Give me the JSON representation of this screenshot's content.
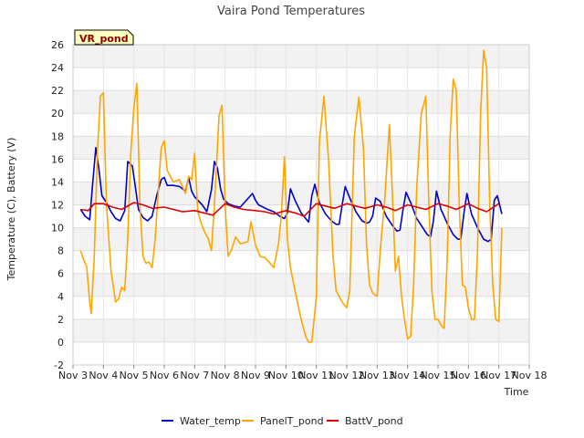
{
  "chart_data": {
    "type": "line",
    "title": "Vaira Pond Temperatures",
    "site_tag": "VR_pond",
    "xlabel": "Time",
    "ylabel": "Temperature (C), Battery (V)",
    "xlim": [
      3,
      18
    ],
    "ylim": [
      -2,
      26
    ],
    "x_ticks": [
      3,
      4,
      5,
      6,
      7,
      8,
      9,
      10,
      11,
      12,
      13,
      14,
      15,
      16,
      17,
      18
    ],
    "x_tick_labels": [
      "Nov 3",
      "Nov 4",
      "Nov 5",
      "Nov 6",
      "Nov 7",
      "Nov 8",
      "Nov 9",
      "Nov 10",
      "Nov 11",
      "Nov 12",
      "Nov 13",
      "Nov 14",
      "Nov 15",
      "Nov 16",
      "Nov 17",
      "Nov 18"
    ],
    "y_ticks": [
      -2,
      0,
      2,
      4,
      6,
      8,
      10,
      12,
      14,
      16,
      18,
      20,
      22,
      24,
      26
    ],
    "grid": true,
    "legend_position": "bottom",
    "colors": {
      "Water_temp": "#0000cc",
      "PanelT_pond": "#ffa500",
      "BattV_pond": "#dd0000"
    },
    "series": [
      {
        "name": "Water_temp",
        "x": [
          3.25,
          3.4,
          3.55,
          3.65,
          3.75,
          3.85,
          3.95,
          4.1,
          4.25,
          4.4,
          4.55,
          4.7,
          4.8,
          4.95,
          5.05,
          5.15,
          5.3,
          5.45,
          5.6,
          5.75,
          5.9,
          6.0,
          6.1,
          6.3,
          6.5,
          6.7,
          6.8,
          6.9,
          7.0,
          7.1,
          7.25,
          7.4,
          7.55,
          7.65,
          7.75,
          7.85,
          7.95,
          8.1,
          8.3,
          8.5,
          8.7,
          8.9,
          9.0,
          9.1,
          9.25,
          9.4,
          9.6,
          9.8,
          9.95,
          10.05,
          10.15,
          10.3,
          10.5,
          10.65,
          10.75,
          10.85,
          10.95,
          11.1,
          11.3,
          11.5,
          11.65,
          11.75,
          11.85,
          11.95,
          12.1,
          12.3,
          12.5,
          12.65,
          12.75,
          12.85,
          12.95,
          13.1,
          13.3,
          13.5,
          13.65,
          13.75,
          13.85,
          13.95,
          14.1,
          14.3,
          14.5,
          14.65,
          14.75,
          14.85,
          14.95,
          15.1,
          15.3,
          15.5,
          15.65,
          15.75,
          15.85,
          15.95,
          16.1,
          16.3,
          16.5,
          16.65,
          16.75,
          16.85,
          16.95,
          17.1
        ],
        "y": [
          11.6,
          11.0,
          10.7,
          14.0,
          17.0,
          15.2,
          12.8,
          12.2,
          11.4,
          10.8,
          10.6,
          11.5,
          15.8,
          15.4,
          13.6,
          11.6,
          10.9,
          10.6,
          11.0,
          12.8,
          14.2,
          14.4,
          13.7,
          13.7,
          13.6,
          13.2,
          14.4,
          13.2,
          12.7,
          12.4,
          12.0,
          11.4,
          13.3,
          15.8,
          15.2,
          13.4,
          12.5,
          12.1,
          11.9,
          11.8,
          12.4,
          13.0,
          12.4,
          12.0,
          11.8,
          11.6,
          11.4,
          11.0,
          10.8,
          11.3,
          13.4,
          12.4,
          11.3,
          10.8,
          10.5,
          12.8,
          13.8,
          12.2,
          11.2,
          10.6,
          10.3,
          10.3,
          12.0,
          13.6,
          12.6,
          11.4,
          10.6,
          10.4,
          10.5,
          11.0,
          12.6,
          12.3,
          11.0,
          10.2,
          9.7,
          9.8,
          11.6,
          13.1,
          12.2,
          10.8,
          10.0,
          9.4,
          9.2,
          10.6,
          13.2,
          11.6,
          10.4,
          9.4,
          9.0,
          9.0,
          11.2,
          13.0,
          11.2,
          10.0,
          9.0,
          8.8,
          9.0,
          12.4,
          12.8,
          11.2
        ]
      },
      {
        "name": "PanelT_pond",
        "x": [
          3.25,
          3.35,
          3.45,
          3.55,
          3.6,
          3.7,
          3.8,
          3.9,
          4.0,
          4.1,
          4.25,
          4.4,
          4.5,
          4.6,
          4.7,
          4.8,
          4.9,
          5.0,
          5.1,
          5.2,
          5.3,
          5.4,
          5.5,
          5.6,
          5.7,
          5.8,
          5.9,
          6.0,
          6.1,
          6.3,
          6.5,
          6.7,
          6.8,
          6.9,
          7.0,
          7.1,
          7.2,
          7.3,
          7.45,
          7.55,
          7.65,
          7.75,
          7.8,
          7.9,
          8.0,
          8.1,
          8.2,
          8.35,
          8.5,
          8.65,
          8.75,
          8.85,
          9.0,
          9.15,
          9.3,
          9.45,
          9.6,
          9.75,
          9.85,
          9.95,
          10.05,
          10.15,
          10.3,
          10.5,
          10.65,
          10.75,
          10.85,
          11.0,
          11.1,
          11.25,
          11.4,
          11.55,
          11.65,
          11.75,
          11.85,
          12.0,
          12.1,
          12.25,
          12.4,
          12.55,
          12.65,
          12.75,
          12.85,
          13.0,
          13.1,
          13.25,
          13.4,
          13.5,
          13.6,
          13.7,
          13.8,
          13.9,
          14.0,
          14.1,
          14.2,
          14.3,
          14.45,
          14.6,
          14.7,
          14.8,
          14.9,
          15.0,
          15.1,
          15.2,
          15.3,
          15.4,
          15.5,
          15.6,
          15.7,
          15.8,
          15.9,
          16.0,
          16.1,
          16.2,
          16.3,
          16.4,
          16.5,
          16.6,
          16.7,
          16.8,
          16.9,
          17.0,
          17.1
        ],
        "y": [
          8.0,
          7.2,
          6.6,
          3.5,
          2.5,
          7.5,
          16.5,
          21.5,
          21.8,
          12.0,
          6.2,
          3.5,
          3.8,
          4.8,
          4.5,
          9.0,
          16.5,
          20.5,
          22.6,
          12.0,
          7.5,
          6.9,
          7.0,
          6.5,
          9.0,
          13.0,
          17.0,
          17.6,
          15.0,
          14.0,
          14.2,
          13.0,
          14.5,
          14.2,
          16.5,
          11.5,
          10.5,
          9.8,
          9.0,
          8.0,
          12.0,
          17.0,
          19.8,
          20.7,
          12.0,
          7.5,
          8.0,
          9.2,
          8.6,
          8.7,
          8.8,
          10.5,
          8.5,
          7.5,
          7.4,
          7.0,
          6.5,
          8.5,
          11.0,
          16.2,
          9.0,
          6.5,
          4.5,
          2.0,
          0.5,
          0.0,
          0.0,
          4.0,
          17.5,
          21.5,
          16.0,
          7.5,
          4.5,
          4.0,
          3.5,
          3.0,
          4.5,
          18.0,
          21.4,
          17.0,
          8.5,
          5.0,
          4.3,
          4.0,
          8.0,
          12.5,
          19.0,
          13.0,
          6.2,
          7.5,
          4.0,
          2.0,
          0.3,
          0.5,
          5.0,
          13.5,
          20.0,
          21.5,
          12.0,
          4.5,
          2.0,
          2.0,
          1.5,
          1.2,
          7.0,
          18.0,
          23.0,
          22.0,
          12.0,
          5.0,
          4.8,
          3.0,
          2.0,
          2.0,
          8.0,
          20.0,
          25.5,
          24.0,
          12.0,
          5.0,
          2.0,
          1.8,
          10.0
        ]
      },
      {
        "name": "BattV_pond",
        "x": [
          3.25,
          3.5,
          3.7,
          4.0,
          4.3,
          4.6,
          5.0,
          5.3,
          5.6,
          6.0,
          6.3,
          6.6,
          7.0,
          7.3,
          7.6,
          8.0,
          8.3,
          8.6,
          9.0,
          9.3,
          9.6,
          10.0,
          10.3,
          10.6,
          11.0,
          11.3,
          11.6,
          12.0,
          12.3,
          12.6,
          13.0,
          13.3,
          13.6,
          14.0,
          14.3,
          14.6,
          15.0,
          15.3,
          15.6,
          16.0,
          16.3,
          16.6,
          17.0
        ],
        "y": [
          11.6,
          11.5,
          12.1,
          12.1,
          11.8,
          11.6,
          12.2,
          12.0,
          11.7,
          11.8,
          11.6,
          11.4,
          11.5,
          11.3,
          11.1,
          12.1,
          11.8,
          11.6,
          11.5,
          11.4,
          11.2,
          11.5,
          11.3,
          11.0,
          12.1,
          11.9,
          11.7,
          12.1,
          11.9,
          11.7,
          12.0,
          11.8,
          11.5,
          12.0,
          11.8,
          11.6,
          12.1,
          11.9,
          11.6,
          12.1,
          11.7,
          11.4,
          12.1
        ]
      }
    ]
  }
}
